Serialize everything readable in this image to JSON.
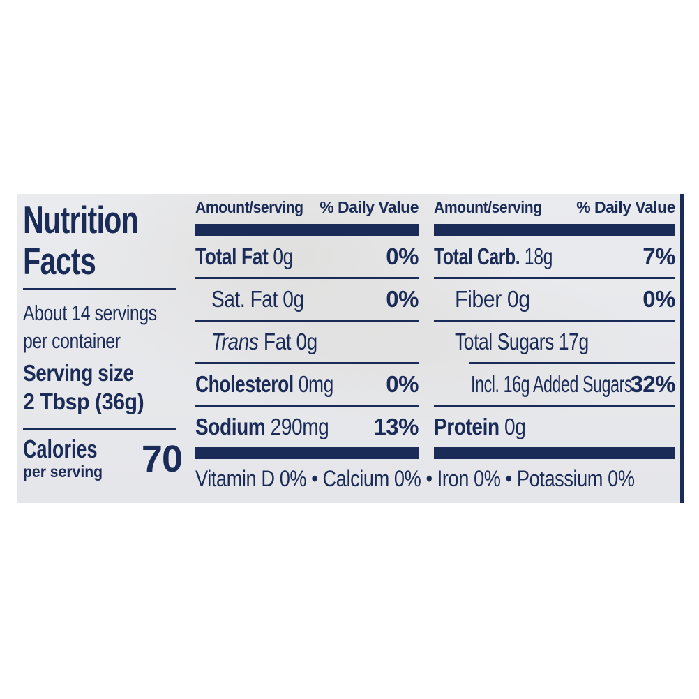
{
  "colors": {
    "navy": "#1b2b57",
    "label_bg": "#e8e9ec",
    "page_bg": "#ffffff"
  },
  "nutrition_label": {
    "title": {
      "line1": "Nutrition",
      "line2": "Facts"
    },
    "servings": {
      "line1": "About 14 servings",
      "line2": "per container"
    },
    "serving_size": {
      "label": "Serving size",
      "value": "2 Tbsp (36g)"
    },
    "calories": {
      "label": "Calories",
      "sublabel": "per serving",
      "value": "70"
    },
    "column_headers": {
      "amount": "Amount/serving",
      "daily_value": "% Daily Value"
    },
    "middle_column": {
      "rows": [
        {
          "name": "Total Fat",
          "amount": "0g",
          "dv": "0%"
        },
        {
          "name": "Sat. Fat",
          "amount": "0g",
          "dv": "0%"
        },
        {
          "name": "Trans",
          "amount": "Fat 0g",
          "dv": ""
        },
        {
          "name": "Cholesterol",
          "amount": "0mg",
          "dv": "0%"
        },
        {
          "name": "Sodium",
          "amount": "290mg",
          "dv": "13%"
        }
      ]
    },
    "right_column": {
      "rows": [
        {
          "name": "Total Carb.",
          "amount": "18g",
          "dv": "7%"
        },
        {
          "name": "Fiber",
          "amount": "0g",
          "dv": "0%"
        },
        {
          "name": "Total Sugars",
          "amount": "17g",
          "dv": ""
        },
        {
          "name": "Incl. 16g Added Sugars",
          "amount": "",
          "dv": "32%"
        },
        {
          "name": "Protein",
          "amount": "0g",
          "dv": ""
        }
      ]
    },
    "micronutrients": "Vitamin D 0% • Calcium 0% • Iron 0% • Potassium 0%"
  }
}
